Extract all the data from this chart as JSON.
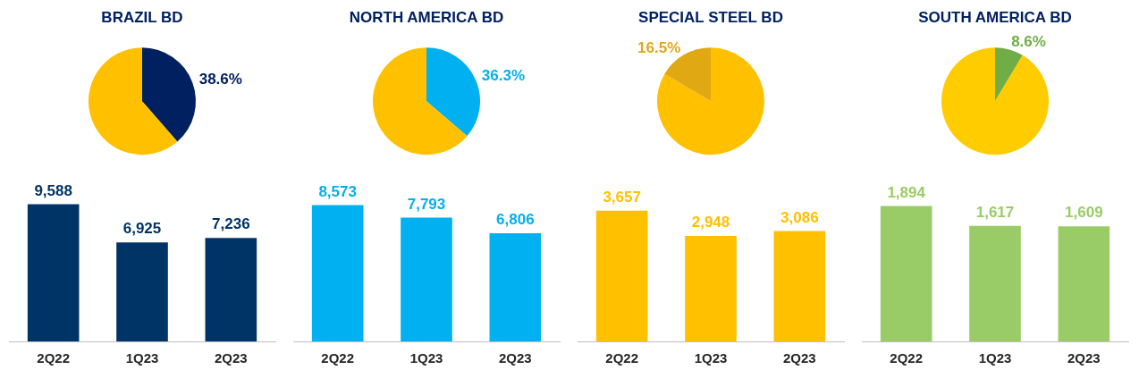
{
  "chart_data": [
    {
      "type": "pie",
      "title": "BRAZIL BD",
      "categories": [
        null,
        null
      ],
      "values": [
        38.6,
        61.4
      ],
      "colors": [
        "#002060",
        "#ffc000"
      ],
      "value_labels": [
        "38.6%",
        null
      ]
    },
    {
      "type": "pie",
      "title": "NORTH AMERICA BD",
      "categories": [
        null,
        null
      ],
      "values": [
        36.3,
        63.7
      ],
      "colors": [
        "#00b0f0",
        "#ffc000"
      ],
      "value_labels": [
        "36.3%",
        null
      ]
    },
    {
      "type": "pie",
      "title": "SPECIAL STEEL BD",
      "categories": [
        null,
        null
      ],
      "values": [
        83.5,
        16.5
      ],
      "colors": [
        "#ffc000",
        "#e0a812"
      ],
      "value_labels": [
        null,
        "16.5%"
      ]
    },
    {
      "type": "pie",
      "title": "SOUTH AMERICA BD",
      "categories": [
        null,
        null
      ],
      "values": [
        8.6,
        91.4
      ],
      "colors": [
        "#70ad47",
        "#ffcc00"
      ],
      "value_labels": [
        "8.6%",
        null
      ]
    },
    {
      "type": "bar",
      "categories": [
        "2Q22",
        "1Q23",
        "2Q23"
      ],
      "series": [
        {
          "color": "#003366",
          "values": [
            9588,
            6925,
            7236
          ],
          "value_labels": [
            "9,588",
            "6,925",
            "7,236"
          ]
        }
      ]
    },
    {
      "type": "bar",
      "categories": [
        "2Q22",
        "1Q23",
        "2Q23"
      ],
      "series": [
        {
          "color": "#00b0f0",
          "values": [
            8573,
            7793,
            6806
          ],
          "value_labels": [
            "8,573",
            "7,793",
            "6,806"
          ]
        }
      ]
    },
    {
      "type": "bar",
      "categories": [
        "2Q22",
        "1Q23",
        "2Q23"
      ],
      "series": [
        {
          "color": "#ffc000",
          "values": [
            3657,
            2948,
            3086
          ],
          "value_labels": [
            "3,657",
            "2,948",
            "3,086"
          ]
        }
      ]
    },
    {
      "type": "bar",
      "categories": [
        "2Q22",
        "1Q23",
        "2Q23"
      ],
      "series": [
        {
          "color": "#99cc66",
          "values": [
            1894,
            1617,
            1609
          ],
          "value_labels": [
            "1,894",
            "1,617",
            "1,609"
          ]
        }
      ]
    }
  ]
}
